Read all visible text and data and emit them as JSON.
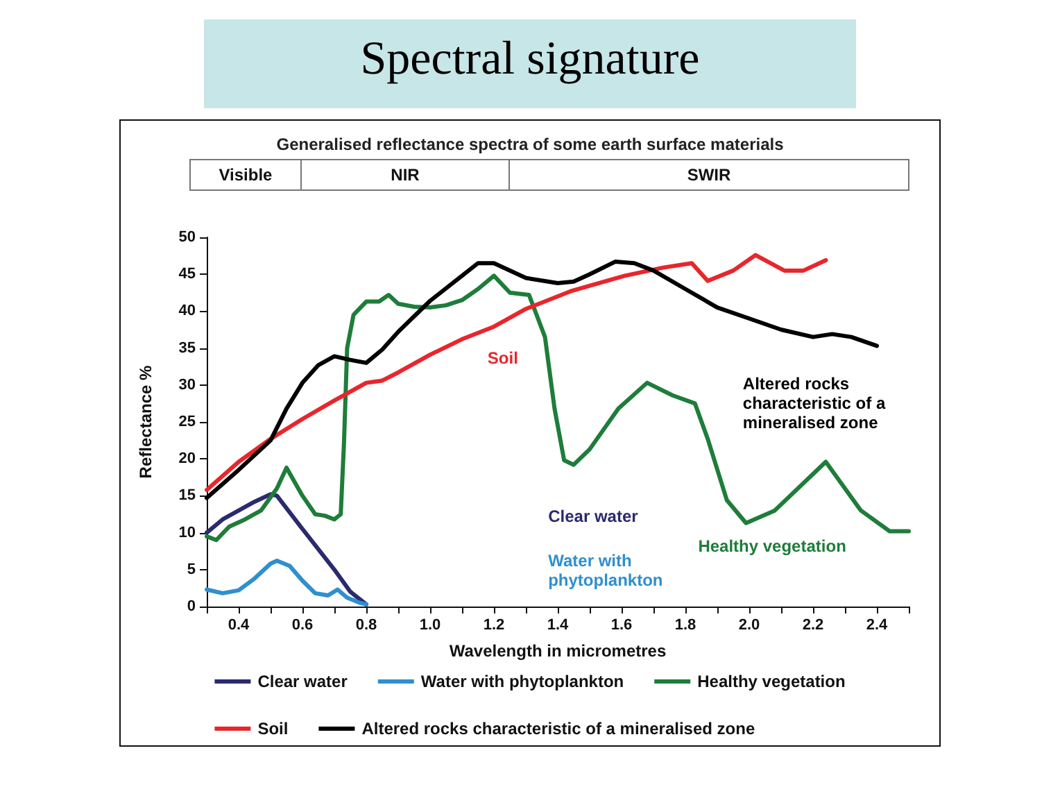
{
  "chart_data": {
    "type": "line",
    "title": "Spectral signature",
    "subtitle": "Generalised reflectance spectra of some earth surface materials",
    "xlabel": "Wavelength in micrometres",
    "ylabel": "Reflectance %",
    "xlim": [
      0.3,
      2.5
    ],
    "xticks": [
      {
        "value": 0.3,
        "label": null
      },
      0.4,
      {
        "value": 0.5,
        "label": null
      },
      0.6,
      {
        "value": 0.7,
        "label": null
      },
      0.8,
      {
        "value": 0.9,
        "label": null
      },
      {
        "value": 1,
        "label": "1.0"
      },
      {
        "value": 1.1,
        "label": null
      },
      1.2,
      {
        "value": 1.3,
        "label": null
      },
      1.4,
      {
        "value": 1.5,
        "label": null
      },
      1.6,
      {
        "value": 1.7,
        "label": null
      },
      1.8,
      {
        "value": 1.9,
        "label": null
      },
      {
        "value": 2,
        "label": "2.0"
      },
      {
        "value": 2.1,
        "label": null
      },
      2.2,
      {
        "value": 2.3,
        "label": null
      },
      2.4,
      {
        "value": 2.5,
        "label": null
      }
    ],
    "ylim": [
      0,
      50
    ],
    "yticks": [
      0,
      5,
      10,
      15,
      20,
      25,
      30,
      35,
      40,
      45,
      50
    ],
    "grid": false,
    "legend": "bottom",
    "marker": "none",
    "line_style": "solid",
    "annotations": [
      "Visible",
      "NIR",
      "SWIR",
      "Clear water",
      "Water with phytoplankton",
      "Healthy vegetation",
      "Soil",
      "Altered rocks characteristic of a mineralised zone"
    ],
    "series": [
      {
        "name": "Clear water",
        "color": "#2b2a6e",
        "x": [
          0.3,
          0.35,
          0.4,
          0.45,
          0.5,
          0.52,
          0.6,
          0.7,
          0.75,
          0.8
        ],
        "values": [
          10,
          11.8,
          13,
          14.2,
          15.2,
          15,
          10.5,
          5,
          2,
          0.3
        ]
      },
      {
        "name": "Water with phytoplankton",
        "color": "#2f8fcf",
        "x": [
          0.3,
          0.35,
          0.4,
          0.45,
          0.5,
          0.52,
          0.56,
          0.6,
          0.64,
          0.68,
          0.71,
          0.74,
          0.78,
          0.8
        ],
        "values": [
          2.3,
          1.8,
          2.2,
          3.8,
          5.8,
          6.2,
          5.5,
          3.5,
          1.8,
          1.5,
          2.3,
          1.2,
          0.5,
          0.3
        ]
      },
      {
        "name": "Healthy vegetation",
        "color": "#1e7d3a",
        "x": [
          0.3,
          0.33,
          0.37,
          0.42,
          0.47,
          0.52,
          0.55,
          0.6,
          0.64,
          0.67,
          0.7,
          0.72,
          0.73,
          0.74,
          0.76,
          0.8,
          0.84,
          0.87,
          0.9,
          0.95,
          1.0,
          1.05,
          1.1,
          1.15,
          1.2,
          1.25,
          1.31,
          1.36,
          1.39,
          1.42,
          1.45,
          1.5,
          1.59,
          1.68,
          1.76,
          1.83,
          1.87,
          1.93,
          1.99,
          2.08,
          2.24,
          2.35,
          2.44,
          2.5
        ],
        "values": [
          9.5,
          9,
          10.8,
          11.8,
          13,
          16,
          18.8,
          15,
          12.5,
          12.3,
          11.8,
          12.5,
          22,
          35,
          39.5,
          41.3,
          41.3,
          42.2,
          41,
          40.6,
          40.5,
          40.8,
          41.5,
          43,
          44.8,
          42.5,
          42.2,
          36.5,
          26.8,
          19.8,
          19.2,
          21.3,
          26.8,
          30.3,
          28.6,
          27.5,
          22.7,
          14.4,
          11.3,
          13,
          19.6,
          13,
          10.2,
          10.2
        ]
      },
      {
        "name": "Soil",
        "color": "#e8262c",
        "x": [
          0.3,
          0.4,
          0.5,
          0.6,
          0.7,
          0.8,
          0.85,
          0.9,
          1.0,
          1.1,
          1.2,
          1.3,
          1.44,
          1.61,
          1.73,
          1.82,
          1.87,
          1.95,
          2.02,
          2.11,
          2.17,
          2.24
        ],
        "values": [
          15.8,
          19.6,
          22.7,
          25.4,
          27.9,
          30.3,
          30.6,
          31.7,
          34.1,
          36.2,
          37.9,
          40.3,
          42.7,
          44.8,
          45.9,
          46.5,
          44.1,
          45.5,
          47.6,
          45.5,
          45.5,
          46.9
        ]
      },
      {
        "name": "Altered rocks characteristic of a mineralised zone",
        "color": "#000000",
        "x": [
          0.3,
          0.4,
          0.5,
          0.55,
          0.6,
          0.65,
          0.7,
          0.75,
          0.8,
          0.85,
          0.9,
          1.0,
          1.1,
          1.15,
          1.2,
          1.3,
          1.4,
          1.45,
          1.5,
          1.58,
          1.64,
          1.7,
          1.8,
          1.9,
          2.0,
          2.1,
          2.2,
          2.26,
          2.32,
          2.4
        ],
        "values": [
          14.7,
          18.5,
          22.5,
          26.8,
          30.3,
          32.7,
          33.9,
          33.4,
          33,
          34.8,
          37.2,
          41.4,
          44.8,
          46.5,
          46.5,
          44.5,
          43.8,
          44,
          45,
          46.7,
          46.5,
          45.5,
          43,
          40.5,
          39,
          37.5,
          36.5,
          36.9,
          36.5,
          35.3
        ]
      }
    ]
  }
}
